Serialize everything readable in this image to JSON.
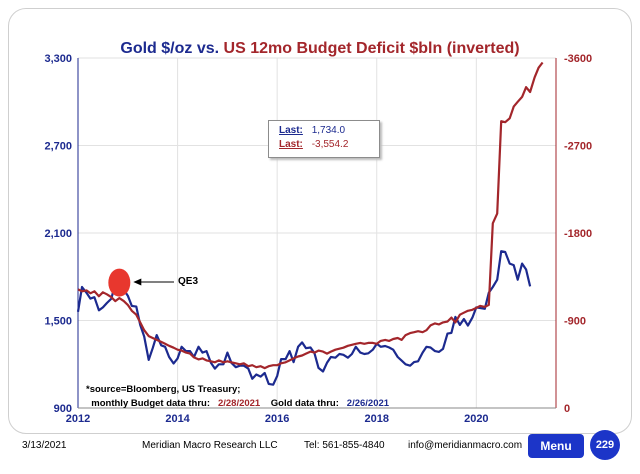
{
  "title": {
    "gold": "Gold $/oz",
    "vs": "vs.",
    "deficit": "US 12mo Budget Deficit $bln (inverted)"
  },
  "legend": {
    "gold_key": "Last:",
    "gold_value": "1,734.0",
    "deficit_key": "Last:",
    "deficit_value": "-3,554.2"
  },
  "annotation": {
    "qe3": "QE3"
  },
  "source": {
    "line1": "*source=Bloomberg, US Treasury;",
    "line2_prefix": "monthly Budget data thru:",
    "budget_date": "2/28/2021",
    "gold_prefix": "Gold data thru:",
    "gold_date": "2/26/2021"
  },
  "footer": {
    "date": "3/13/2021",
    "org": "Meridian Macro Research  LLC",
    "tel": "Tel: 561-855-4840",
    "email": "info@meridianmacro.com",
    "menu_label": "Menu",
    "page_number": "229"
  },
  "colors": {
    "gold": "#1c2a8f",
    "deficit": "#a3262b",
    "qe3_marker": "#e8372e"
  },
  "chart_data": {
    "type": "line",
    "x_range": [
      2012.0,
      2021.6
    ],
    "x_ticks": [
      "2012",
      "2014",
      "2016",
      "2018",
      "2020"
    ],
    "x_tick_values": [
      2012,
      2014,
      2016,
      2018,
      2020
    ],
    "left_axis": {
      "range": [
        900,
        3300
      ],
      "ticks": [
        "900",
        "1,500",
        "2,100",
        "2,700",
        "3,300"
      ],
      "tick_values": [
        900,
        1500,
        2100,
        2700,
        3300
      ]
    },
    "right_axis": {
      "inverted": true,
      "range": [
        0,
        -3600
      ],
      "ticks": [
        "0",
        "-900",
        "-1800",
        "-2700",
        "-3600"
      ],
      "tick_values": [
        0,
        -900,
        -1800,
        -2700,
        -3600
      ]
    },
    "series": [
      {
        "axis": "left",
        "color": "#1c2a8f",
        "points": [
          [
            2012.0,
            1560
          ],
          [
            2012.08,
            1730
          ],
          [
            2012.17,
            1690
          ],
          [
            2012.25,
            1650
          ],
          [
            2012.33,
            1660
          ],
          [
            2012.42,
            1570
          ],
          [
            2012.5,
            1590
          ],
          [
            2012.58,
            1620
          ],
          [
            2012.67,
            1650
          ],
          [
            2012.75,
            1760
          ],
          [
            2012.83,
            1720
          ],
          [
            2012.92,
            1710
          ],
          [
            2013.0,
            1670
          ],
          [
            2013.08,
            1600
          ],
          [
            2013.17,
            1595
          ],
          [
            2013.25,
            1470
          ],
          [
            2013.33,
            1390
          ],
          [
            2013.42,
            1230
          ],
          [
            2013.5,
            1310
          ],
          [
            2013.58,
            1400
          ],
          [
            2013.67,
            1330
          ],
          [
            2013.75,
            1320
          ],
          [
            2013.83,
            1250
          ],
          [
            2013.92,
            1205
          ],
          [
            2014.0,
            1240
          ],
          [
            2014.08,
            1320
          ],
          [
            2014.17,
            1290
          ],
          [
            2014.25,
            1290
          ],
          [
            2014.33,
            1250
          ],
          [
            2014.42,
            1320
          ],
          [
            2014.5,
            1280
          ],
          [
            2014.58,
            1290
          ],
          [
            2014.67,
            1210
          ],
          [
            2014.75,
            1170
          ],
          [
            2014.83,
            1200
          ],
          [
            2014.92,
            1200
          ],
          [
            2015.0,
            1280
          ],
          [
            2015.08,
            1210
          ],
          [
            2015.17,
            1180
          ],
          [
            2015.25,
            1190
          ],
          [
            2015.33,
            1190
          ],
          [
            2015.42,
            1170
          ],
          [
            2015.5,
            1100
          ],
          [
            2015.58,
            1130
          ],
          [
            2015.67,
            1115
          ],
          [
            2015.75,
            1140
          ],
          [
            2015.83,
            1065
          ],
          [
            2015.92,
            1060
          ],
          [
            2016.0,
            1120
          ],
          [
            2016.08,
            1235
          ],
          [
            2016.17,
            1235
          ],
          [
            2016.25,
            1290
          ],
          [
            2016.33,
            1215
          ],
          [
            2016.42,
            1320
          ],
          [
            2016.5,
            1350
          ],
          [
            2016.58,
            1310
          ],
          [
            2016.67,
            1315
          ],
          [
            2016.75,
            1275
          ],
          [
            2016.83,
            1175
          ],
          [
            2016.92,
            1150
          ],
          [
            2017.0,
            1210
          ],
          [
            2017.08,
            1250
          ],
          [
            2017.17,
            1245
          ],
          [
            2017.25,
            1270
          ],
          [
            2017.33,
            1265
          ],
          [
            2017.42,
            1245
          ],
          [
            2017.5,
            1270
          ],
          [
            2017.58,
            1320
          ],
          [
            2017.67,
            1280
          ],
          [
            2017.75,
            1270
          ],
          [
            2017.83,
            1275
          ],
          [
            2017.92,
            1300
          ],
          [
            2018.0,
            1340
          ],
          [
            2018.08,
            1320
          ],
          [
            2018.17,
            1325
          ],
          [
            2018.25,
            1315
          ],
          [
            2018.33,
            1300
          ],
          [
            2018.42,
            1250
          ],
          [
            2018.5,
            1225
          ],
          [
            2018.58,
            1200
          ],
          [
            2018.67,
            1190
          ],
          [
            2018.75,
            1215
          ],
          [
            2018.83,
            1220
          ],
          [
            2018.92,
            1280
          ],
          [
            2019.0,
            1320
          ],
          [
            2019.08,
            1315
          ],
          [
            2019.17,
            1290
          ],
          [
            2019.25,
            1285
          ],
          [
            2019.33,
            1305
          ],
          [
            2019.42,
            1410
          ],
          [
            2019.5,
            1415
          ],
          [
            2019.58,
            1525
          ],
          [
            2019.67,
            1470
          ],
          [
            2019.75,
            1510
          ],
          [
            2019.83,
            1465
          ],
          [
            2019.92,
            1520
          ],
          [
            2020.0,
            1590
          ],
          [
            2020.08,
            1585
          ],
          [
            2020.17,
            1580
          ],
          [
            2020.25,
            1690
          ],
          [
            2020.33,
            1730
          ],
          [
            2020.42,
            1780
          ],
          [
            2020.5,
            1975
          ],
          [
            2020.58,
            1970
          ],
          [
            2020.67,
            1890
          ],
          [
            2020.75,
            1880
          ],
          [
            2020.83,
            1780
          ],
          [
            2020.92,
            1890
          ],
          [
            2021.0,
            1850
          ],
          [
            2021.08,
            1734
          ]
        ]
      },
      {
        "axis": "right",
        "color": "#a3262b",
        "points": [
          [
            2012.0,
            -1220
          ],
          [
            2012.08,
            -1200
          ],
          [
            2012.17,
            -1210
          ],
          [
            2012.25,
            -1180
          ],
          [
            2012.33,
            -1200
          ],
          [
            2012.42,
            -1150
          ],
          [
            2012.5,
            -1190
          ],
          [
            2012.58,
            -1170
          ],
          [
            2012.67,
            -1140
          ],
          [
            2012.75,
            -1100
          ],
          [
            2012.83,
            -1130
          ],
          [
            2012.92,
            -1100
          ],
          [
            2013.0,
            -1060
          ],
          [
            2013.08,
            -1000
          ],
          [
            2013.17,
            -960
          ],
          [
            2013.25,
            -880
          ],
          [
            2013.33,
            -800
          ],
          [
            2013.42,
            -740
          ],
          [
            2013.5,
            -720
          ],
          [
            2013.58,
            -700
          ],
          [
            2013.67,
            -680
          ],
          [
            2013.75,
            -660
          ],
          [
            2013.83,
            -640
          ],
          [
            2013.92,
            -620
          ],
          [
            2014.0,
            -600
          ],
          [
            2014.08,
            -590
          ],
          [
            2014.17,
            -570
          ],
          [
            2014.25,
            -560
          ],
          [
            2014.33,
            -520
          ],
          [
            2014.42,
            -500
          ],
          [
            2014.5,
            -510
          ],
          [
            2014.58,
            -490
          ],
          [
            2014.67,
            -480
          ],
          [
            2014.75,
            -470
          ],
          [
            2014.83,
            -490
          ],
          [
            2014.92,
            -470
          ],
          [
            2015.0,
            -480
          ],
          [
            2015.08,
            -470
          ],
          [
            2015.17,
            -460
          ],
          [
            2015.25,
            -450
          ],
          [
            2015.33,
            -460
          ],
          [
            2015.42,
            -430
          ],
          [
            2015.5,
            -440
          ],
          [
            2015.58,
            -420
          ],
          [
            2015.67,
            -430
          ],
          [
            2015.75,
            -410
          ],
          [
            2015.83,
            -430
          ],
          [
            2015.92,
            -440
          ],
          [
            2016.0,
            -440
          ],
          [
            2016.08,
            -460
          ],
          [
            2016.17,
            -470
          ],
          [
            2016.25,
            -490
          ],
          [
            2016.33,
            -510
          ],
          [
            2016.42,
            -530
          ],
          [
            2016.5,
            -540
          ],
          [
            2016.58,
            -560
          ],
          [
            2016.67,
            -580
          ],
          [
            2016.75,
            -570
          ],
          [
            2016.83,
            -590
          ],
          [
            2016.92,
            -580
          ],
          [
            2017.0,
            -560
          ],
          [
            2017.08,
            -580
          ],
          [
            2017.17,
            -600
          ],
          [
            2017.25,
            -610
          ],
          [
            2017.33,
            -620
          ],
          [
            2017.42,
            -640
          ],
          [
            2017.5,
            -650
          ],
          [
            2017.58,
            -660
          ],
          [
            2017.67,
            -670
          ],
          [
            2017.75,
            -660
          ],
          [
            2017.83,
            -670
          ],
          [
            2017.92,
            -670
          ],
          [
            2018.0,
            -660
          ],
          [
            2018.08,
            -690
          ],
          [
            2018.17,
            -700
          ],
          [
            2018.25,
            -690
          ],
          [
            2018.33,
            -710
          ],
          [
            2018.42,
            -720
          ],
          [
            2018.5,
            -700
          ],
          [
            2018.58,
            -750
          ],
          [
            2018.67,
            -770
          ],
          [
            2018.75,
            -780
          ],
          [
            2018.83,
            -790
          ],
          [
            2018.92,
            -780
          ],
          [
            2019.0,
            -800
          ],
          [
            2019.08,
            -850
          ],
          [
            2019.17,
            -870
          ],
          [
            2019.25,
            -860
          ],
          [
            2019.33,
            -880
          ],
          [
            2019.42,
            -890
          ],
          [
            2019.5,
            -930
          ],
          [
            2019.58,
            -880
          ],
          [
            2019.67,
            -960
          ],
          [
            2019.75,
            -980
          ],
          [
            2019.83,
            -1000
          ],
          [
            2019.92,
            -1010
          ],
          [
            2020.0,
            -1030
          ],
          [
            2020.08,
            -1050
          ],
          [
            2020.17,
            -1040
          ],
          [
            2020.25,
            -1060
          ],
          [
            2020.33,
            -1900
          ],
          [
            2020.42,
            -2000
          ],
          [
            2020.5,
            -2950
          ],
          [
            2020.58,
            -2940
          ],
          [
            2020.67,
            -2980
          ],
          [
            2020.75,
            -3100
          ],
          [
            2020.83,
            -3150
          ],
          [
            2020.92,
            -3200
          ],
          [
            2021.0,
            -3300
          ],
          [
            2021.08,
            -3250
          ],
          [
            2021.17,
            -3400
          ],
          [
            2021.25,
            -3500
          ],
          [
            2021.33,
            -3554
          ]
        ]
      }
    ],
    "qe3_point": [
      2012.83,
      1760
    ]
  }
}
